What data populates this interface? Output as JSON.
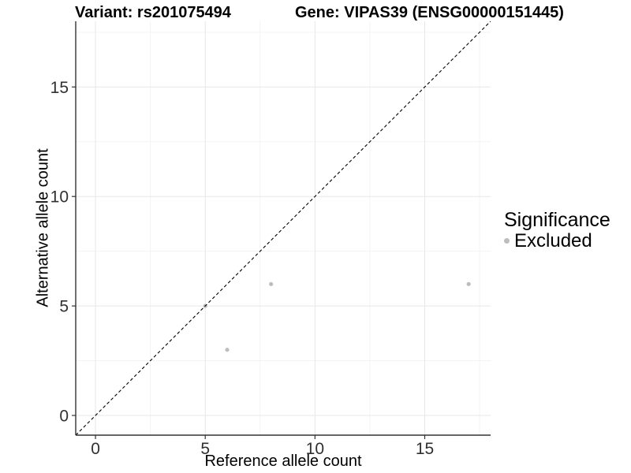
{
  "title": {
    "variant": "Variant: rs201075494",
    "gene": "Gene: VIPAS39 (ENSG00000151445)"
  },
  "legend": {
    "title": "Significance",
    "items": [
      {
        "label": "Excluded",
        "color": "#bdbdbd"
      }
    ]
  },
  "colors": {
    "grid_major": "#e7e7e7",
    "grid_minor": "#f3f3f3",
    "axis_line": "#333333",
    "tick_label": "#303030",
    "reference_line": "#000000",
    "point": "#bdbdbd"
  },
  "chart_data": {
    "type": "scatter",
    "title": "Variant: rs201075494 — Gene: VIPAS39 (ENSG00000151445)",
    "xlabel": "Reference allele count",
    "ylabel": "Alternative allele count",
    "xlim": [
      -0.9,
      18.0
    ],
    "ylim": [
      -0.9,
      18.0
    ],
    "x_major_ticks": [
      0,
      5,
      10,
      15
    ],
    "y_major_ticks": [
      0,
      5,
      10,
      15
    ],
    "x_minor_ticks": [
      2.5,
      7.5,
      12.5,
      17.5
    ],
    "y_minor_ticks": [
      2.5,
      7.5,
      12.5,
      17.5
    ],
    "grid": true,
    "legend_position": "right",
    "series": [
      {
        "name": "Excluded",
        "color": "#bdbdbd",
        "marker": "circle",
        "points": [
          [
            5,
            5
          ],
          [
            6,
            3
          ],
          [
            8,
            6
          ],
          [
            17,
            6
          ]
        ]
      }
    ],
    "reference_line": {
      "style": "dashed",
      "slope": 1,
      "intercept": 0
    }
  }
}
